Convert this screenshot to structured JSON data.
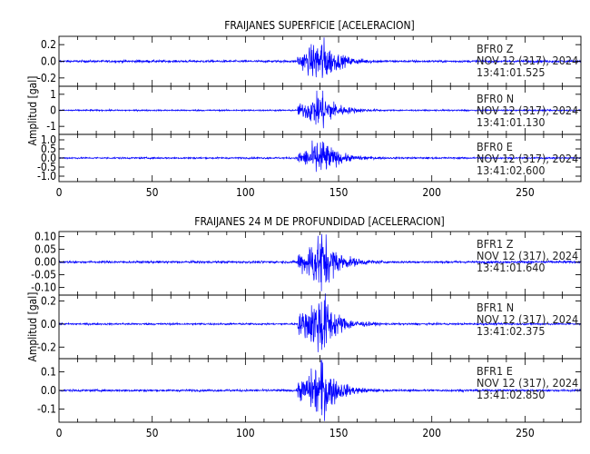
{
  "chart_data": [
    {
      "type": "line",
      "title": "FRAIJANES SUPERFICIE [ACELERACION]",
      "ylabel": "Amplitud [gal]",
      "xlim": [
        0,
        280
      ],
      "xticks": [
        0,
        50,
        100,
        150,
        200,
        250
      ],
      "line_color": "#0000ff",
      "panels": [
        {
          "station": "BFR0",
          "component": "Z",
          "date": "NOV 12 (317), 2024",
          "time": "13:41:01.525",
          "ylim": [
            -0.3,
            0.3
          ],
          "yticks": [
            -0.2,
            0.0,
            0.2
          ],
          "ytick_labels": [
            "-0.2",
            "0.0",
            "0.2"
          ],
          "noise_level": 0.012,
          "peak_amplitude": 0.28
        },
        {
          "station": "BFR0",
          "component": "N",
          "date": "NOV 12 (317), 2024",
          "time": "13:41:01.130",
          "ylim": [
            -1.5,
            1.5
          ],
          "yticks": [
            -1,
            0,
            1
          ],
          "ytick_labels": [
            "-1",
            "0",
            "1"
          ],
          "noise_level": 0.04,
          "peak_amplitude": 1.2
        },
        {
          "station": "BFR0",
          "component": "E",
          "date": "NOV 12 (317), 2024",
          "time": "13:41:02.600",
          "ylim": [
            -1.3,
            1.3
          ],
          "yticks": [
            -1.0,
            -0.5,
            0.0,
            0.5,
            1.0
          ],
          "ytick_labels": [
            "-1.0",
            "-0.5",
            "0.0",
            "0.5",
            "1.0"
          ],
          "noise_level": 0.04,
          "peak_amplitude": 1.05
        }
      ]
    },
    {
      "type": "line",
      "title": "FRAIJANES 24 M DE PROFUNDIDAD [ACELERACION]",
      "ylabel": "Amplitud [gal]",
      "xlim": [
        0,
        280
      ],
      "xticks": [
        0,
        50,
        100,
        150,
        200,
        250
      ],
      "line_color": "#0000ff",
      "panels": [
        {
          "station": "BFR1",
          "component": "Z",
          "date": "NOV 12 (317), 2024",
          "time": "13:41:01.640",
          "ylim": [
            -0.13,
            0.12
          ],
          "yticks": [
            -0.1,
            -0.05,
            0.0,
            0.05,
            0.1
          ],
          "ytick_labels": [
            "-0.10",
            "-0.05",
            "0.00",
            "0.05",
            "0.10"
          ],
          "noise_level": 0.004,
          "peak_amplitude": 0.12
        },
        {
          "station": "BFR1",
          "component": "N",
          "date": "NOV 12 (317), 2024",
          "time": "13:41:02.375",
          "ylim": [
            -0.3,
            0.25
          ],
          "yticks": [
            -0.2,
            0.0,
            0.2
          ],
          "ytick_labels": [
            "-0.2",
            "0.0",
            "0.2"
          ],
          "noise_level": 0.007,
          "peak_amplitude": 0.28
        },
        {
          "station": "BFR1",
          "component": "E",
          "date": "NOV 12 (317), 2024",
          "time": "13:41:02.850",
          "ylim": [
            -0.17,
            0.17
          ],
          "yticks": [
            -0.1,
            0.0,
            0.1
          ],
          "ytick_labels": [
            "-0.1",
            "0.0",
            "0.1"
          ],
          "noise_level": 0.005,
          "peak_amplitude": 0.16
        }
      ]
    }
  ],
  "event": {
    "onset_seconds": 128,
    "peak_seconds": 141,
    "coda_end_seconds": 175
  }
}
